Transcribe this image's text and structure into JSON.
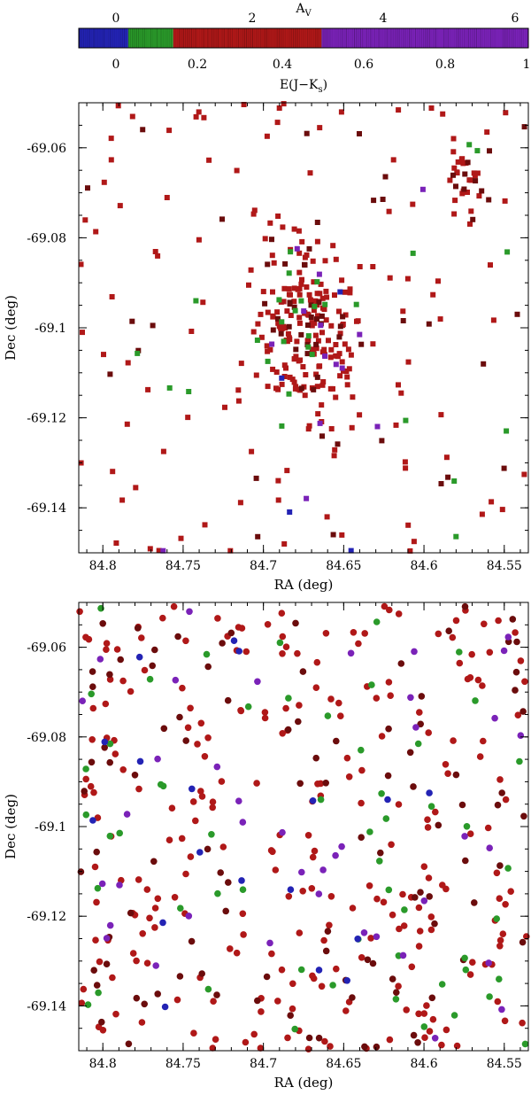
{
  "colorbar": {
    "top_label": "A_V",
    "top_label_main": "A",
    "top_label_sub": "V",
    "top_ticks": [
      0,
      2,
      4,
      6
    ],
    "bottom_label_main": "E(J−K",
    "bottom_label_sub": "s",
    "bottom_label_end": ")",
    "bottom_ticks": [
      0,
      0.2,
      0.4,
      0.6,
      0.8,
      1
    ],
    "bands": [
      {
        "from": 0.0,
        "to": 0.11,
        "color": "#2323b4"
      },
      {
        "from": 0.11,
        "to": 0.21,
        "color": "#2a9a2a"
      },
      {
        "from": 0.21,
        "to": 0.54,
        "color": "#b01818"
      },
      {
        "from": 0.54,
        "to": 1.0,
        "color": "#7a22b8"
      }
    ]
  },
  "chart_data": [
    {
      "type": "scatter",
      "marker": "square",
      "xlabel": "RA (deg)",
      "ylabel": "Dec (deg)",
      "xlim": [
        84.815,
        84.535
      ],
      "ylim": [
        -69.15,
        -69.05
      ],
      "xticks": [
        "84.8",
        "84.75",
        "84.7",
        "84.65",
        "84.6",
        "84.55"
      ],
      "xtick_values": [
        84.8,
        84.75,
        84.7,
        84.65,
        84.6,
        84.55
      ],
      "yticks": [
        "-69.06",
        "-69.08",
        "-69.1",
        "-69.12",
        "-69.14"
      ],
      "ytick_values": [
        -69.06,
        -69.08,
        -69.1,
        -69.12,
        -69.14
      ],
      "color_scale": "E(J-Ks)",
      "cluster_center": [
        84.672,
        -69.101
      ],
      "series": [
        {
          "color": "#b01818",
          "count": 300
        },
        {
          "color": "#6b0c0c",
          "count": 70
        },
        {
          "color": "#2a9a2a",
          "count": 30
        },
        {
          "color": "#7a22b8",
          "count": 14
        },
        {
          "color": "#2323b4",
          "count": 4
        }
      ]
    },
    {
      "type": "scatter",
      "marker": "circle",
      "xlabel": "RA (deg)",
      "ylabel": "Dec (deg)",
      "xlim": [
        84.815,
        84.535
      ],
      "ylim": [
        -69.15,
        -69.05
      ],
      "xticks": [
        "84.8",
        "84.75",
        "84.7",
        "84.65",
        "84.6",
        "84.55"
      ],
      "xtick_values": [
        84.8,
        84.75,
        84.7,
        84.65,
        84.6,
        84.55
      ],
      "yticks": [
        "-69.06",
        "-69.08",
        "-69.1",
        "-69.12",
        "-69.14"
      ],
      "ytick_values": [
        -69.06,
        -69.08,
        -69.1,
        -69.12,
        -69.14
      ],
      "color_scale": "E(J-Ks)",
      "series": [
        {
          "color": "#b01818",
          "count": 250
        },
        {
          "color": "#6b0c0c",
          "count": 100
        },
        {
          "color": "#2a9a2a",
          "count": 55
        },
        {
          "color": "#7a22b8",
          "count": 40
        },
        {
          "color": "#2323b4",
          "count": 18
        }
      ]
    }
  ]
}
